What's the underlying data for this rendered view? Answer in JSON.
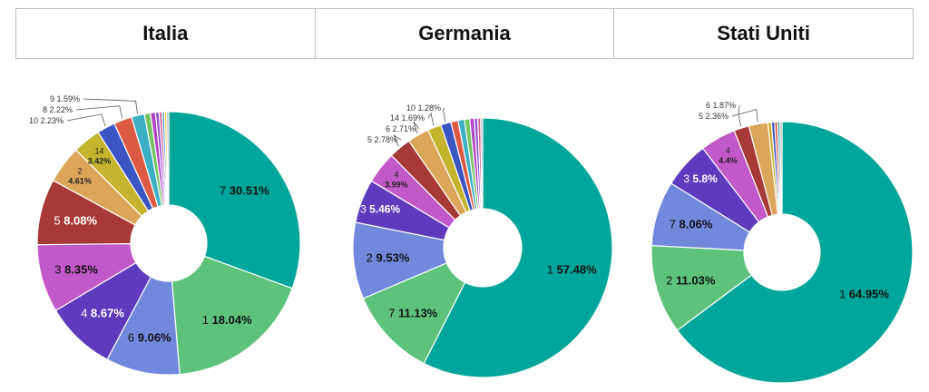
{
  "header": {
    "columns": [
      "Italia",
      "Germania",
      "Stati Uniti"
    ]
  },
  "chart_data": [
    {
      "type": "pie",
      "title": "Italia",
      "donut": true,
      "slices": [
        {
          "label": "7",
          "value": 30.51,
          "text": "30.51%",
          "color": "#00a59b"
        },
        {
          "label": "1",
          "value": 18.04,
          "text": "18.04%",
          "color": "#5ec37a"
        },
        {
          "label": "6",
          "value": 9.06,
          "text": "9.06%",
          "color": "#7089dd"
        },
        {
          "label": "4",
          "value": 8.67,
          "text": "8.67%",
          "color": "#5e3bbd"
        },
        {
          "label": "3",
          "value": 8.35,
          "text": "8.35%",
          "color": "#c259c8"
        },
        {
          "label": "5",
          "value": 8.08,
          "text": "8.08%",
          "color": "#a73a37"
        },
        {
          "label": "2",
          "value": 4.61,
          "text": "4.61%",
          "color": "#dca65a"
        },
        {
          "label": "14",
          "value": 3.42,
          "text": "3.42%",
          "color": "#c6b42e"
        },
        {
          "label": "10",
          "value": 2.23,
          "text": "2.23%",
          "color": "#3b55c2"
        },
        {
          "label": "8",
          "value": 2.22,
          "text": "2.22%",
          "color": "#dc5a43"
        },
        {
          "label": "9",
          "value": 1.59,
          "text": "1.59%",
          "color": "#3dafc4"
        },
        {
          "label": "",
          "value": 0.75,
          "text": "",
          "color": "#74c561"
        },
        {
          "label": "",
          "value": 0.6,
          "text": "",
          "color": "#b343c4"
        },
        {
          "label": "",
          "value": 0.45,
          "text": "",
          "color": "#9b57d6"
        },
        {
          "label": "",
          "value": 0.35,
          "text": "",
          "color": "#d45a8f"
        },
        {
          "label": "",
          "value": 0.3,
          "text": "",
          "color": "#4aa0d0"
        },
        {
          "label": "",
          "value": 0.27,
          "text": "",
          "color": "#f2c33c"
        },
        {
          "label": "",
          "value": 0.25,
          "text": "",
          "color": "#9e9e9e"
        }
      ]
    },
    {
      "type": "pie",
      "title": "Germania",
      "donut": true,
      "slices": [
        {
          "label": "1",
          "value": 57.48,
          "text": "57.48%",
          "color": "#00a59b"
        },
        {
          "label": "7",
          "value": 11.13,
          "text": "11.13%",
          "color": "#5ec37a"
        },
        {
          "label": "2",
          "value": 9.53,
          "text": "9.53%",
          "color": "#7089dd"
        },
        {
          "label": "3",
          "value": 5.46,
          "text": "5.46%",
          "color": "#5e3bbd"
        },
        {
          "label": "4",
          "value": 3.99,
          "text": "3.99%",
          "color": "#c259c8"
        },
        {
          "label": "5",
          "value": 2.78,
          "text": "2.78%",
          "color": "#a73a37"
        },
        {
          "label": "6",
          "value": 2.71,
          "text": "2.71%",
          "color": "#dca65a"
        },
        {
          "label": "14",
          "value": 1.69,
          "text": "1.69%",
          "color": "#c6b42e"
        },
        {
          "label": "10",
          "value": 1.28,
          "text": "1.28%",
          "color": "#3b55c2"
        },
        {
          "label": "",
          "value": 0.9,
          "text": "",
          "color": "#dc5a43"
        },
        {
          "label": "",
          "value": 0.8,
          "text": "",
          "color": "#3dafc4"
        },
        {
          "label": "",
          "value": 0.65,
          "text": "",
          "color": "#74c561"
        },
        {
          "label": "",
          "value": 0.55,
          "text": "",
          "color": "#b343c4"
        },
        {
          "label": "",
          "value": 0.45,
          "text": "",
          "color": "#9b57d6"
        },
        {
          "label": "",
          "value": 0.35,
          "text": "",
          "color": "#d45a8f"
        },
        {
          "label": "",
          "value": 0.25,
          "text": "",
          "color": "#9e9e9e"
        }
      ]
    },
    {
      "type": "pie",
      "title": "Stati Uniti",
      "donut": true,
      "slices": [
        {
          "label": "1",
          "value": 64.95,
          "text": "64.95%",
          "color": "#00a59b"
        },
        {
          "label": "2",
          "value": 11.03,
          "text": "11.03%",
          "color": "#5ec37a"
        },
        {
          "label": "7",
          "value": 8.06,
          "text": "8.06%",
          "color": "#7089dd"
        },
        {
          "label": "3",
          "value": 5.8,
          "text": "5.8%",
          "color": "#5e3bbd"
        },
        {
          "label": "4",
          "value": 4.4,
          "text": "4.4%",
          "color": "#c259c8"
        },
        {
          "label": "6",
          "value": 1.87,
          "text": "1.87%",
          "color": "#a73a37"
        },
        {
          "label": "5",
          "value": 2.36,
          "text": "2.36%",
          "color": "#dca65a"
        },
        {
          "label": "",
          "value": 0.45,
          "text": "",
          "color": "#c6b42e"
        },
        {
          "label": "",
          "value": 0.4,
          "text": "",
          "color": "#3b55c2"
        },
        {
          "label": "",
          "value": 0.35,
          "text": "",
          "color": "#dc5a43"
        },
        {
          "label": "",
          "value": 0.3,
          "text": "",
          "color": "#3dafc4"
        },
        {
          "label": "",
          "value": 0.25,
          "text": "",
          "color": "#9e9e9e"
        }
      ]
    }
  ]
}
